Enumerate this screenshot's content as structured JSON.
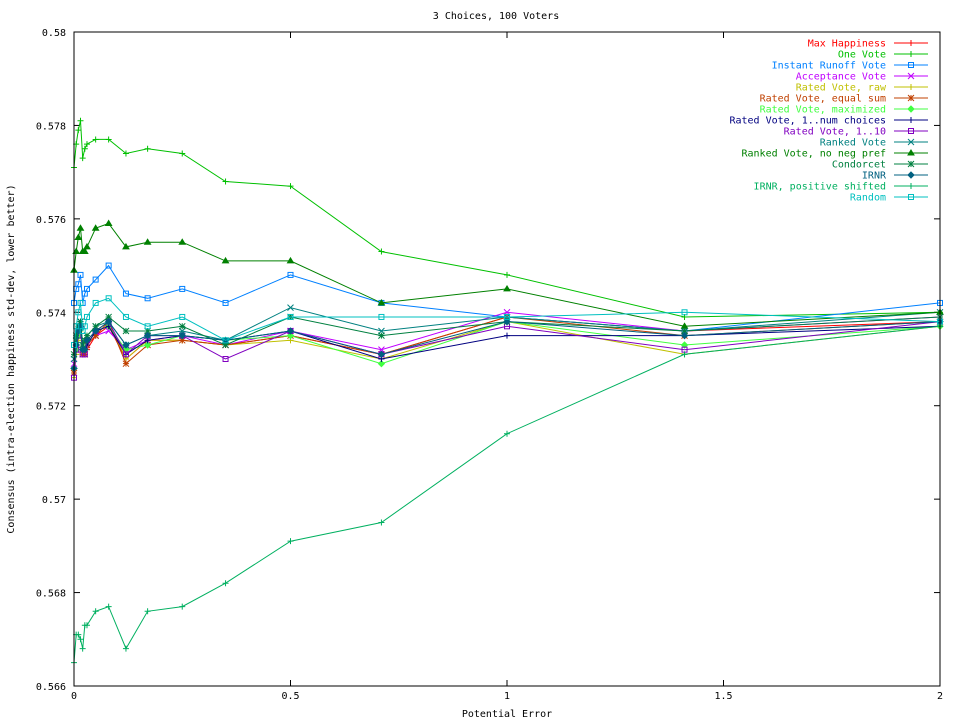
{
  "chart_data": {
    "type": "line",
    "title": "3 Choices, 100 Voters",
    "xlabel": "Potential Error",
    "ylabel": "Consensus (intra-election happiness std-dev, lower better)",
    "xlim": [
      0,
      2
    ],
    "ylim": [
      0.566,
      0.58
    ],
    "xticks": [
      0,
      0.5,
      1,
      1.5,
      2
    ],
    "xtick_labels": [
      "0",
      "0.5",
      "1",
      "1.5",
      "2"
    ],
    "yticks": [
      0.566,
      0.568,
      0.57,
      0.572,
      0.574,
      0.576,
      0.578,
      0.58
    ],
    "ytick_labels": [
      "0.566",
      "0.568",
      "0.57",
      "0.572",
      "0.574",
      "0.576",
      "0.578",
      "0.58"
    ],
    "legend_position": "top-right",
    "x": [
      0,
      0.005,
      0.01,
      0.015,
      0.02,
      0.025,
      0.03,
      0.05,
      0.08,
      0.12,
      0.17,
      0.25,
      0.35,
      0.5,
      0.71,
      1.0,
      1.41,
      2.0
    ],
    "series": [
      {
        "name": "Max Happiness",
        "color": "#ff0000",
        "marker": "plus",
        "values": [
          0.5728,
          0.5732,
          0.5735,
          0.5737,
          0.5733,
          0.5731,
          0.5732,
          0.5735,
          0.5737,
          0.573,
          0.5734,
          0.5734,
          0.5733,
          0.5735,
          0.5731,
          0.5739,
          0.5736,
          0.5738
        ]
      },
      {
        "name": "One Vote",
        "color": "#00c000",
        "marker": "plus",
        "values": [
          0.5771,
          0.5776,
          0.5779,
          0.5781,
          0.5773,
          0.5775,
          0.5776,
          0.5777,
          0.5777,
          0.5774,
          0.5775,
          0.5774,
          0.5768,
          0.5767,
          0.5753,
          0.5748,
          0.5739,
          0.574
        ]
      },
      {
        "name": "Instant Runoff Vote",
        "color": "#0080ff",
        "marker": "square",
        "values": [
          0.5742,
          0.5745,
          0.5746,
          0.5748,
          0.5742,
          0.5744,
          0.5745,
          0.5747,
          0.575,
          0.5744,
          0.5743,
          0.5745,
          0.5742,
          0.5748,
          0.5742,
          0.5739,
          0.5736,
          0.5742
        ]
      },
      {
        "name": "Acceptance Vote",
        "color": "#c000ff",
        "marker": "x",
        "values": [
          0.5729,
          0.5733,
          0.5736,
          0.5738,
          0.5732,
          0.5731,
          0.5733,
          0.5735,
          0.5736,
          0.5732,
          0.5734,
          0.5735,
          0.5733,
          0.5736,
          0.5732,
          0.574,
          0.5736,
          0.5739
        ]
      },
      {
        "name": "Rated Vote, raw",
        "color": "#c0c000",
        "marker": "plus",
        "values": [
          0.5726,
          0.5731,
          0.5734,
          0.5736,
          0.5731,
          0.5732,
          0.5733,
          0.5736,
          0.5738,
          0.573,
          0.5734,
          0.5734,
          0.5733,
          0.5734,
          0.573,
          0.5738,
          0.5731,
          0.5737
        ]
      },
      {
        "name": "Rated Vote, equal sum",
        "color": "#c04000",
        "marker": "star",
        "values": [
          0.5727,
          0.5732,
          0.5735,
          0.5737,
          0.5731,
          0.5731,
          0.5733,
          0.5735,
          0.5738,
          0.5729,
          0.5733,
          0.5734,
          0.5733,
          0.5735,
          0.5731,
          0.5739,
          0.5735,
          0.5738
        ]
      },
      {
        "name": "Rated Vote, maximized",
        "color": "#40ff40",
        "marker": "diamond",
        "values": [
          0.5728,
          0.5732,
          0.5735,
          0.5737,
          0.5732,
          0.5732,
          0.5734,
          0.5736,
          0.5737,
          0.5732,
          0.5733,
          0.5735,
          0.5734,
          0.5735,
          0.5729,
          0.5738,
          0.5733,
          0.5737
        ]
      },
      {
        "name": "Rated Vote, 1..num choices",
        "color": "#000080",
        "marker": "plus",
        "values": [
          0.5728,
          0.5733,
          0.5736,
          0.5738,
          0.5732,
          0.5732,
          0.5733,
          0.5736,
          0.5737,
          0.5731,
          0.5734,
          0.5735,
          0.5734,
          0.5736,
          0.573,
          0.5735,
          0.5735,
          0.5737
        ]
      },
      {
        "name": "Rated Vote, 1..10",
        "color": "#8000c0",
        "marker": "square",
        "values": [
          0.5726,
          0.5732,
          0.5735,
          0.5737,
          0.5731,
          0.5731,
          0.5734,
          0.5736,
          0.5738,
          0.5731,
          0.5735,
          0.5735,
          0.573,
          0.5736,
          0.5731,
          0.5737,
          0.5732,
          0.5738
        ]
      },
      {
        "name": "Ranked Vote",
        "color": "#008080",
        "marker": "x",
        "values": [
          0.573,
          0.5734,
          0.5737,
          0.5738,
          0.5733,
          0.5734,
          0.5735,
          0.5737,
          0.5738,
          0.5733,
          0.5735,
          0.5736,
          0.5734,
          0.5741,
          0.5736,
          0.5739,
          0.5736,
          0.574
        ]
      },
      {
        "name": "Ranked Vote, no neg pref",
        "color": "#008000",
        "marker": "triangle",
        "values": [
          0.5749,
          0.5753,
          0.5756,
          0.5758,
          0.5753,
          0.5753,
          0.5754,
          0.5758,
          0.5759,
          0.5754,
          0.5755,
          0.5755,
          0.5751,
          0.5751,
          0.5742,
          0.5745,
          0.5737,
          0.574
        ]
      },
      {
        "name": "Condorcet",
        "color": "#008040",
        "marker": "star",
        "values": [
          0.5731,
          0.5735,
          0.5737,
          0.5738,
          0.5733,
          0.5734,
          0.5735,
          0.5737,
          0.5739,
          0.5736,
          0.5736,
          0.5737,
          0.5733,
          0.5739,
          0.5735,
          0.5738,
          0.5736,
          0.5739
        ]
      },
      {
        "name": "IRNR",
        "color": "#006080",
        "marker": "diamond",
        "values": [
          0.5728,
          0.5733,
          0.5736,
          0.5737,
          0.5732,
          0.5732,
          0.5734,
          0.5736,
          0.5738,
          0.5733,
          0.5735,
          0.5735,
          0.5734,
          0.5736,
          0.5731,
          0.5738,
          0.5735,
          0.5738
        ]
      },
      {
        "name": "IRNR, positive shifted",
        "color": "#00b060",
        "marker": "plus",
        "values": [
          0.5665,
          0.5671,
          0.5671,
          0.567,
          0.5668,
          0.5673,
          0.5673,
          0.5676,
          0.5677,
          0.5668,
          0.5676,
          0.5677,
          0.5682,
          0.5691,
          0.5695,
          0.5714,
          0.5731,
          0.5737
        ]
      },
      {
        "name": "Random",
        "color": "#00c0c0",
        "marker": "square",
        "values": [
          0.5733,
          0.5737,
          0.574,
          0.5742,
          0.5736,
          0.5737,
          0.5739,
          0.5742,
          0.5743,
          0.5739,
          0.5737,
          0.5739,
          0.5734,
          0.5739,
          0.5739,
          0.5739,
          0.574,
          0.5738
        ]
      }
    ]
  }
}
